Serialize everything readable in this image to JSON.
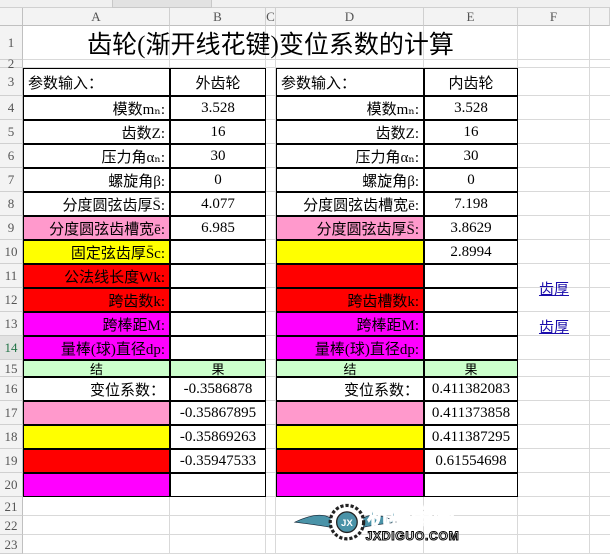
{
  "columns": [
    "A",
    "B",
    "C",
    "D",
    "E",
    "F"
  ],
  "title": "齿轮(渐开线花键)变位系数的计算",
  "rows": [
    {
      "n": "3",
      "left": {
        "label": "参数输入：",
        "value": "外齿轮",
        "color": ""
      },
      "right": {
        "label": "参数输入：",
        "value": "内齿轮",
        "color": ""
      }
    },
    {
      "n": "4",
      "left": {
        "label": "模数mₙ:",
        "value": "3.528",
        "color": ""
      },
      "right": {
        "label": "模数mₙ:",
        "value": "3.528",
        "color": ""
      }
    },
    {
      "n": "5",
      "left": {
        "label": "齿数Z:",
        "value": "16",
        "color": ""
      },
      "right": {
        "label": "齿数Z:",
        "value": "16",
        "color": ""
      }
    },
    {
      "n": "6",
      "left": {
        "label": "压力角αₙ:",
        "value": "30",
        "color": ""
      },
      "right": {
        "label": "压力角αₙ:",
        "value": "30",
        "color": ""
      }
    },
    {
      "n": "7",
      "left": {
        "label": "螺旋角β:",
        "value": "0",
        "color": ""
      },
      "right": {
        "label": "螺旋角β:",
        "value": "0",
        "color": ""
      }
    },
    {
      "n": "8",
      "left": {
        "label": "分度圆弦齿厚S̄:",
        "value": "4.077",
        "color": ""
      },
      "right": {
        "label": "分度圆弦齿槽宽ē:",
        "value": "7.198",
        "color": ""
      }
    },
    {
      "n": "9",
      "left": {
        "label": "分度圆弦齿槽宽ē:",
        "value": "6.985",
        "color": "pink"
      },
      "right": {
        "label": "分度圆弦齿厚S̄:",
        "value": "3.8629",
        "color": "pink"
      }
    },
    {
      "n": "10",
      "left": {
        "label": "固定弦齿厚S̄c:",
        "value": "",
        "color": "yellow"
      },
      "right": {
        "label": "",
        "value": "2.8994",
        "color": "yellow"
      }
    },
    {
      "n": "11",
      "left": {
        "label": "公法线长度Wk:",
        "value": "",
        "color": "red"
      },
      "right": {
        "label": "",
        "value": "",
        "color": "red"
      }
    },
    {
      "n": "12",
      "left": {
        "label": "跨齿数k:",
        "value": "",
        "color": "red"
      },
      "right": {
        "label": "跨齿槽数k:",
        "value": "",
        "color": "red"
      }
    },
    {
      "n": "13",
      "left": {
        "label": "跨棒距M:",
        "value": "",
        "color": "mag"
      },
      "right": {
        "label": "跨棒距M:",
        "value": "",
        "color": "mag"
      }
    },
    {
      "n": "14",
      "left": {
        "label": "量棒(球)直径dp:",
        "value": "",
        "color": "mag"
      },
      "right": {
        "label": "量棒(球)直径dp:",
        "value": "",
        "color": "mag"
      }
    },
    {
      "n": "15",
      "left": {
        "label": "结",
        "value": "果",
        "color": "green"
      },
      "right": {
        "label": "结",
        "value": "果",
        "color": "green"
      }
    },
    {
      "n": "16",
      "left": {
        "label": "变位系数：",
        "value": "-0.3586878",
        "color": ""
      },
      "right": {
        "label": "变位系数：",
        "value": "0.411382083",
        "color": ""
      }
    },
    {
      "n": "17",
      "left": {
        "label": "",
        "value": "-0.35867895",
        "color": "pink"
      },
      "right": {
        "label": "",
        "value": "0.411373858",
        "color": "pink"
      }
    },
    {
      "n": "18",
      "left": {
        "label": "",
        "value": "-0.35869263",
        "color": "yellow"
      },
      "right": {
        "label": "",
        "value": "0.411387295",
        "color": "yellow"
      }
    },
    {
      "n": "19",
      "left": {
        "label": "",
        "value": "-0.35947533",
        "color": "red"
      },
      "right": {
        "label": "",
        "value": "0.61554698",
        "color": "red"
      }
    },
    {
      "n": "20",
      "left": {
        "label": "",
        "value": "",
        "color": "mag"
      },
      "right": {
        "label": "",
        "value": "",
        "color": "mag"
      }
    }
  ],
  "extra_rows": [
    "1",
    "2",
    "21",
    "22",
    "23"
  ],
  "links": [
    "齿厚",
    "齿厚"
  ],
  "watermark": {
    "cn": "机械帝国",
    "en": "JXDIGUO.COM",
    "badge": "JX"
  },
  "colors": {
    "pink": "#ff99cc",
    "yellow": "#ffff00",
    "red": "#ff0000",
    "magenta": "#ff00ff",
    "green": "#ccffcc",
    "link": "#1a0dab"
  }
}
